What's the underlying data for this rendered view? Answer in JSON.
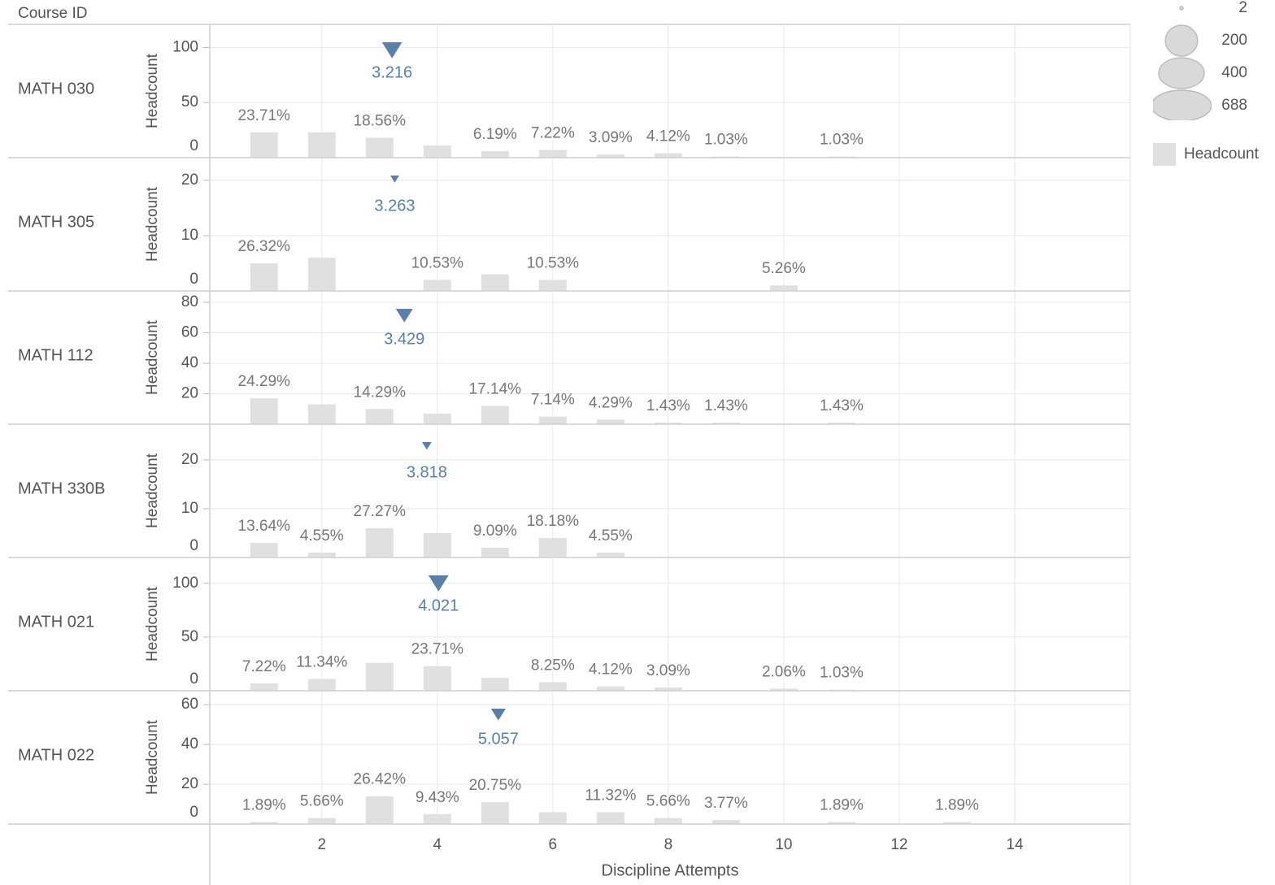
{
  "chart_data": {
    "type": "bar",
    "row_header": "Course ID",
    "x_label": "Discipline Attempts",
    "xlim": [
      0.06,
      16
    ],
    "xticks": [
      2,
      4,
      6,
      8,
      10,
      12,
      14
    ],
    "bar_color": "#e0e0e0",
    "mean_color": "#5b80a8",
    "grid": true,
    "size_legend": [
      2,
      200,
      400,
      688
    ],
    "color_legend": "Headcount",
    "panels": [
      {
        "name": "MATH 030",
        "y_label": "Headcount",
        "ylim": [
          0,
          121
        ],
        "yticks": [
          0,
          50,
          100
        ],
        "x": [
          1,
          2,
          3,
          4,
          5,
          6,
          7,
          8,
          9,
          11
        ],
        "values": [
          23,
          23,
          18,
          11,
          6,
          7,
          3,
          4,
          1,
          1
        ],
        "percent_labels": [
          "23.71%",
          null,
          "18.56%",
          null,
          "6.19%",
          "7.22%",
          "3.09%",
          "4.12%",
          "1.03%",
          "1.03%"
        ],
        "mean": 3.216,
        "count": 97
      },
      {
        "name": "MATH 305",
        "y_label": "Headcount",
        "ylim": [
          0,
          24.1
        ],
        "yticks": [
          0,
          10,
          20
        ],
        "x": [
          1,
          2,
          4,
          5,
          6,
          10
        ],
        "values": [
          5,
          6,
          2,
          3,
          2,
          1
        ],
        "percent_labels": [
          "26.32%",
          null,
          "10.53%",
          null,
          "10.53%",
          "5.26%"
        ],
        "mean": 3.263,
        "count": 19
      },
      {
        "name": "MATH 112",
        "y_label": "Headcount",
        "ylim": [
          0,
          87.5
        ],
        "yticks": [
          20,
          40,
          60,
          80
        ],
        "x": [
          1,
          2,
          3,
          4,
          5,
          6,
          7,
          8,
          9,
          11
        ],
        "values": [
          17,
          13,
          10,
          7,
          12,
          5,
          3,
          1,
          1,
          1
        ],
        "percent_labels": [
          "24.29%",
          null,
          "14.29%",
          null,
          "17.14%",
          "7.14%",
          "4.29%",
          "1.43%",
          "1.43%",
          "1.43%"
        ],
        "mean": 3.429,
        "count": 70
      },
      {
        "name": "MATH 330B",
        "y_label": "Headcount",
        "ylim": [
          0,
          27.3
        ],
        "yticks": [
          0,
          10,
          20
        ],
        "x": [
          1,
          2,
          3,
          4,
          5,
          6,
          7
        ],
        "values": [
          3,
          1,
          6,
          5,
          2,
          4,
          1
        ],
        "percent_labels": [
          "13.64%",
          "4.55%",
          "27.27%",
          null,
          "9.09%",
          "18.18%",
          "4.55%"
        ],
        "mean": 3.818,
        "count": 22
      },
      {
        "name": "MATH 021",
        "y_label": "Headcount",
        "ylim": [
          0,
          124
        ],
        "yticks": [
          0,
          50,
          100
        ],
        "x": [
          1,
          2,
          3,
          4,
          5,
          6,
          7,
          8,
          10,
          11
        ],
        "values": [
          7,
          11,
          26,
          23,
          12,
          8,
          4,
          3,
          2,
          1
        ],
        "percent_labels": [
          "7.22%",
          "11.34%",
          null,
          "23.71%",
          null,
          "8.25%",
          "4.12%",
          "3.09%",
          "2.06%",
          "1.03%"
        ],
        "mean": 4.021,
        "count": 97
      },
      {
        "name": "MATH 022",
        "y_label": "Headcount",
        "ylim": [
          0,
          67
        ],
        "yticks": [
          0,
          20,
          40,
          60
        ],
        "x": [
          1,
          2,
          3,
          4,
          5,
          6,
          7,
          8,
          9,
          11,
          13
        ],
        "values": [
          1,
          3,
          14,
          5,
          11,
          6,
          6,
          3,
          2,
          1,
          1
        ],
        "percent_labels": [
          "1.89%",
          "5.66%",
          "26.42%",
          "9.43%",
          "20.75%",
          null,
          "11.32%",
          "5.66%",
          "3.77%",
          "1.89%",
          "1.89%"
        ],
        "mean": 5.057,
        "count": 53
      }
    ]
  }
}
